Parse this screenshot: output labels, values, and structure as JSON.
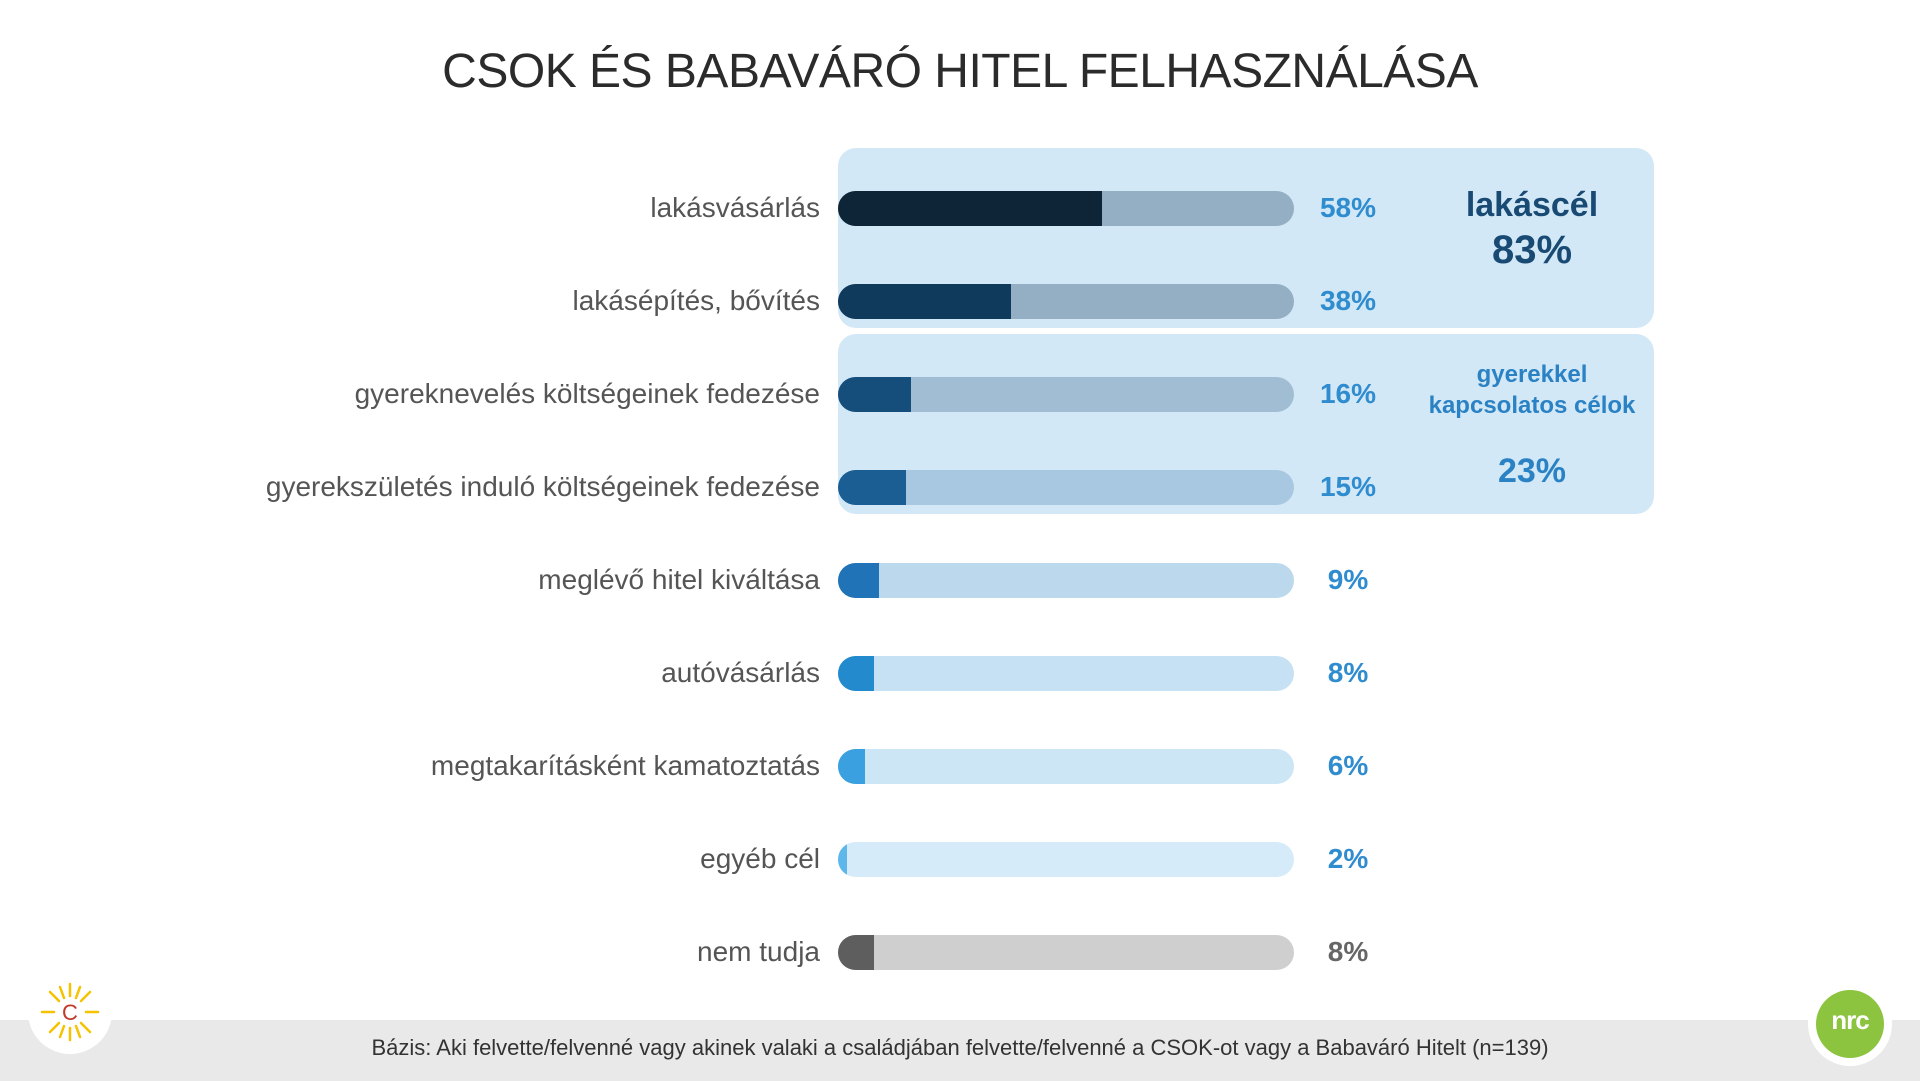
{
  "title": "CSOK ÉS BABAVÁRÓ HITEL FELHASZNÁLÁSA",
  "chart_data": {
    "type": "bar",
    "orientation": "horizontal",
    "title": "CSOK ÉS BABAVÁRÓ HITEL FELHASZNÁLÁSA",
    "xlim": [
      0,
      100
    ],
    "grid": false,
    "categories": [
      "lakásvásárlás",
      "lakásépítés, bővítés",
      "gyereknevelés költségeinek fedezése",
      "gyerekszületés induló költségeinek fedezése",
      "meglévő hitel kiváltása",
      "autóvásárlás",
      "megtakarításként kamatoztatás",
      "egyéb cél",
      "nem tudja"
    ],
    "values": [
      58,
      38,
      16,
      15,
      9,
      8,
      6,
      2,
      8
    ],
    "value_labels": [
      "58%",
      "38%",
      "16%",
      "15%",
      "9%",
      "8%",
      "6%",
      "2%",
      "8%"
    ],
    "bar_colors": [
      "#0e2437",
      "#103a5c",
      "#164e7b",
      "#1a5e93",
      "#1f73b6",
      "#238acd",
      "#3aa0df",
      "#5db7ea",
      "#5e5e5e"
    ],
    "track_colors": [
      "#94aec3",
      "#94aec3",
      "#a0bdd4",
      "#a8c7e0",
      "#bcd8ec",
      "#c6e1f3",
      "#cde6f6",
      "#d6ebf9",
      "#cfcfcf"
    ],
    "label_colors": [
      "#2f8ccf",
      "#2f8ccf",
      "#2f8ccf",
      "#2f8ccf",
      "#2f8ccf",
      "#2f8ccf",
      "#2f8ccf",
      "#2f8ccf",
      "#666666"
    ],
    "groups": [
      {
        "title": "lakáscél",
        "value": "83%",
        "rows": [
          0,
          1
        ],
        "color": "#184a73"
      },
      {
        "title": "gyerekkel kapcsolatos célok",
        "value": "23%",
        "rows": [
          2,
          3
        ],
        "color": "#2a82c4"
      }
    ]
  },
  "footer": {
    "text": "Bázis: Aki felvette/felvenné vagy akinek valaki a családjában felvette/felvenné a CSOK-ot vagy a Babaváró Hitelt (n=139)"
  },
  "logos": {
    "left": {
      "letter": "C",
      "icon": "sun-icon"
    },
    "right": {
      "text": "nrc",
      "icon": "nrc-logo"
    }
  }
}
